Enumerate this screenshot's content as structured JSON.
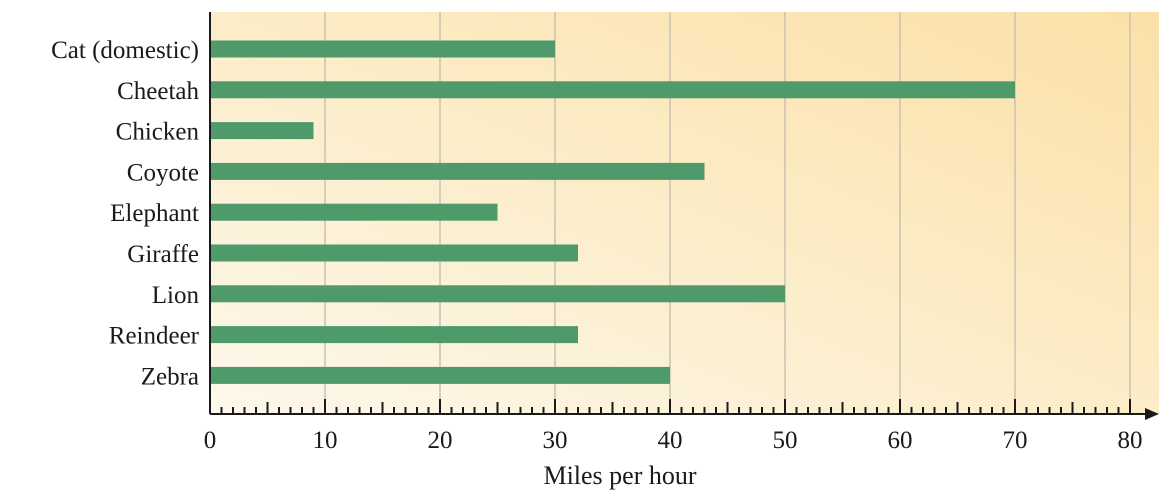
{
  "chart_data": {
    "type": "bar",
    "orientation": "horizontal",
    "categories": [
      "Cat (domestic)",
      "Cheetah",
      "Chicken",
      "Coyote",
      "Elephant",
      "Giraffe",
      "Lion",
      "Reindeer",
      "Zebra"
    ],
    "values": [
      30,
      70,
      9,
      43,
      25,
      32,
      50,
      32,
      40
    ],
    "xlabel": "Miles per hour",
    "xlim": [
      0,
      80
    ],
    "xticks": [
      0,
      10,
      20,
      30,
      40,
      50,
      60,
      70,
      80
    ],
    "grid": "vertical",
    "colors": {
      "bar": "#4e9a6b",
      "background_light": "#fdf8ec",
      "background_warm": "#fbe1ab",
      "gridline": "#c9c2b2",
      "axis": "#1a1a1a"
    }
  }
}
